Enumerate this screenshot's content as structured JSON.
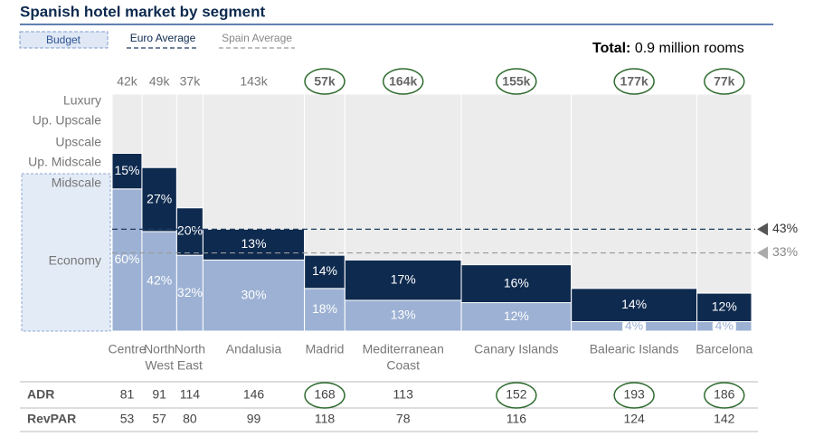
{
  "chart_data": {
    "type": "marimekko",
    "title": "Spanish hotel market by segment",
    "total_label": "Total:",
    "total_value": "0.9 million rooms",
    "budget_label": "Budget",
    "categories": [
      [
        "Centre"
      ],
      [
        "North",
        "West"
      ],
      [
        "North",
        "East"
      ],
      [
        "Andalusia"
      ],
      [
        "Madrid"
      ],
      [
        "Mediterranean",
        "Coast"
      ],
      [
        "Canary Islands"
      ],
      [
        "Balearic Islands"
      ],
      [
        "Barcelona"
      ]
    ],
    "column_sizes": {
      "values": [
        42,
        49,
        37,
        143,
        57,
        164,
        155,
        177,
        77
      ],
      "value_labels": [
        "42k",
        "49k",
        "37k",
        "143k",
        "57k",
        "164k",
        "155k",
        "177k",
        "77k"
      ],
      "highlight": [
        false,
        false,
        false,
        false,
        true,
        true,
        true,
        true,
        true
      ]
    },
    "segments": [
      "Luxury",
      "Up. Upscale",
      "Upscale",
      "Up. Midscale"
    ],
    "series": [
      {
        "name": "Economy",
        "color": "#9cb1d3",
        "values": [
          60,
          42,
          32,
          30,
          18,
          13,
          12,
          4,
          4
        ],
        "value_labels": [
          "60%",
          "42%",
          "32%",
          "30%",
          "18%",
          "13%",
          "12%",
          "4%",
          "4%"
        ]
      },
      {
        "name": "Midscale",
        "color": "#0e2a4f",
        "values": [
          15,
          27,
          20,
          13,
          14,
          17,
          16,
          14,
          12
        ],
        "value_labels": [
          "15%",
          "27%",
          "20%",
          "13%",
          "14%",
          "17%",
          "16%",
          "14%",
          "12%"
        ]
      }
    ],
    "ylim": [
      0,
      100
    ],
    "reference_lines": [
      {
        "name": "Euro Average",
        "value": 43,
        "label": "43%",
        "color": "#1f3b60"
      },
      {
        "name": "Spain Average",
        "value": 33,
        "label": "33%",
        "color": "#999999"
      }
    ],
    "table": {
      "rows": [
        {
          "name": "ADR",
          "values": [
            81,
            91,
            114,
            146,
            168,
            113,
            152,
            193,
            186
          ],
          "highlight": [
            false,
            false,
            false,
            false,
            true,
            false,
            true,
            true,
            true
          ]
        },
        {
          "name": "RevPAR",
          "values": [
            53,
            57,
            80,
            99,
            118,
            78,
            116,
            124,
            142
          ]
        }
      ]
    }
  }
}
